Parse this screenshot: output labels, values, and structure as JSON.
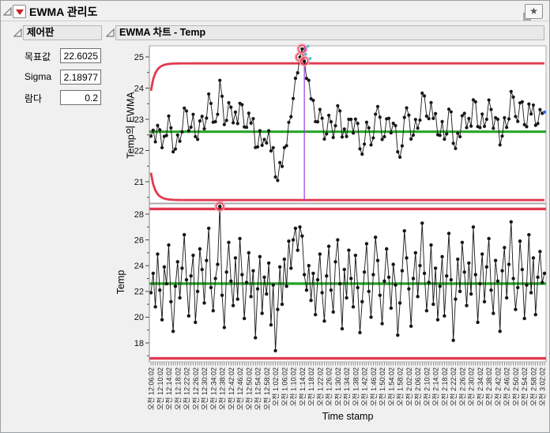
{
  "header": {
    "title": "EWMA 관리도",
    "red_triangle_menu": "red-triangle-menu",
    "star_icon": "star"
  },
  "panels": {
    "control": {
      "title": "제어판",
      "rows": [
        {
          "label": "목표값",
          "value": "22.6025"
        },
        {
          "label": "Sigma",
          "value": "2.18977"
        },
        {
          "label": "람다",
          "value": "0.2"
        }
      ]
    },
    "chart": {
      "title": "EWMA 차트 - Temp"
    }
  },
  "chart_data": {
    "type": "line",
    "title": "EWMA 차트 - Temp",
    "xlabel": "Time stamp",
    "ylabel_top": "Temp의 EWMA",
    "ylabel_bottom": "Temp",
    "params": {
      "target": 22.6025,
      "sigma": 2.18977,
      "lambda": 0.2
    },
    "limits": {
      "ewma_ucl_asymptote": 24.79,
      "ewma_lcl_asymptote": 20.41,
      "temp_ucl": 28.4,
      "temp_center": 22.6025,
      "temp_lcl": 16.8
    },
    "axes": {
      "y_top_ticks": [
        25,
        24,
        23,
        22,
        21
      ],
      "y_top_range": [
        20.37,
        25.35
      ],
      "y_bottom_ticks": [
        28,
        26,
        24,
        22,
        20,
        18
      ],
      "y_bottom_range": [
        16.5,
        28.8
      ],
      "grid": false,
      "x_points_per_label": 4
    },
    "x_tick_labels": [
      "오전 12:06:02",
      "오전 12:10:02",
      "오전 12:14:02",
      "오전 12:18:02",
      "오전 12:22:02",
      "오전 12:26:02",
      "오전 12:30:02",
      "오전 12:34:02",
      "오전 12:38:02",
      "오전 12:42:02",
      "오전 12:46:02",
      "오전 12:50:02",
      "오전 12:54:02",
      "오전 12:58:02",
      "오전 1:02:02",
      "오전 1:06:02",
      "오전 1:10:02",
      "오전 1:14:02",
      "오전 1:18:02",
      "오전 1:22:02",
      "오전 1:26:02",
      "오전 1:30:02",
      "오전 1:34:02",
      "오전 1:38:02",
      "오전 1:42:02",
      "오전 1:46:02",
      "오전 1:50:02",
      "오전 1:54:02",
      "오전 1:58:02",
      "오전 2:02:02",
      "오전 2:06:02",
      "오전 2:10:02",
      "오전 2:14:02",
      "오전 2:18:02",
      "오전 2:22:02",
      "오전 2:26:02",
      "오전 2:30:02",
      "오전 2:34:02",
      "오전 2:38:02",
      "오전 2:42:02",
      "오전 2:46:02",
      "오전 2:50:02",
      "오전 2:54:02",
      "오전 2:58:02",
      "오전 3:02:02"
    ],
    "series": {
      "temp": [
        21.9,
        23.4,
        20.8,
        24.9,
        22.1,
        19.8,
        23.9,
        22.6,
        25.6,
        21.2,
        18.9,
        22.4,
        24.3,
        21.5,
        23.8,
        26.4,
        22.9,
        20.1,
        23.2,
        24.8,
        19.6,
        22.0,
        25.3,
        23.7,
        21.1,
        24.4,
        26.9,
        22.3,
        20.5,
        23.0,
        24.1,
        28.6,
        21.7,
        19.2,
        23.5,
        25.8,
        22.8,
        20.9,
        24.6,
        21.4,
        26.1,
        23.3,
        19.9,
        22.7,
        25.0,
        21.6,
        23.6,
        18.4,
        22.2,
        24.7,
        20.3,
        23.1,
        21.8,
        24.2,
        19.4,
        22.5,
        17.4,
        20.6,
        23.9,
        21.0,
        24.5,
        22.4,
        25.9,
        23.8,
        26.0,
        26.9,
        25.2,
        27.0,
        26.3,
        23.3,
        22.1,
        24.0,
        21.3,
        23.4,
        20.2,
        22.9,
        24.9,
        21.9,
        19.7,
        23.2,
        25.5,
        22.1,
        20.4,
        24.3,
        26.0,
        22.6,
        19.1,
        23.7,
        21.5,
        25.2,
        23.0,
        20.8,
        24.8,
        22.3,
        18.8,
        21.2,
        23.5,
        25.7,
        22.0,
        20.0,
        23.3,
        26.2,
        24.4,
        21.7,
        19.5,
        22.8,
        25.3,
        23.1,
        20.7,
        24.1,
        22.5,
        18.6,
        21.1,
        23.6,
        26.7,
        24.6,
        22.2,
        19.3,
        23.0,
        25.0,
        21.6,
        24.0,
        27.3,
        23.4,
        20.5,
        22.7,
        25.6,
        21.0,
        23.8,
        19.8,
        22.4,
        24.7,
        20.1,
        23.2,
        26.5,
        22.9,
        18.2,
        21.4,
        24.5,
        22.0,
        25.8,
        23.5,
        20.9,
        24.2,
        21.8,
        27.0,
        23.3,
        19.6,
        22.6,
        24.9,
        21.2,
        23.9,
        26.1,
        22.1,
        20.3,
        24.4,
        22.8,
        18.9,
        23.6,
        25.4,
        21.5,
        24.1,
        27.4,
        23.0,
        20.6,
        22.3,
        25.9,
        23.7,
        19.9,
        22.5,
        26.4,
        21.9,
        24.6,
        20.2,
        23.1,
        25.1,
        22.7,
        23.4
      ]
    },
    "flagged_temp_index": 31,
    "selected_index": 69,
    "colors": {
      "limit_red": "#e23a50",
      "center_green": "#28a428",
      "series_black": "#161616",
      "selection_purple": "#9a3cdf",
      "last_point_blue": "#2f6df0",
      "flag_mark_cyan": "#2ec4d6"
    }
  }
}
